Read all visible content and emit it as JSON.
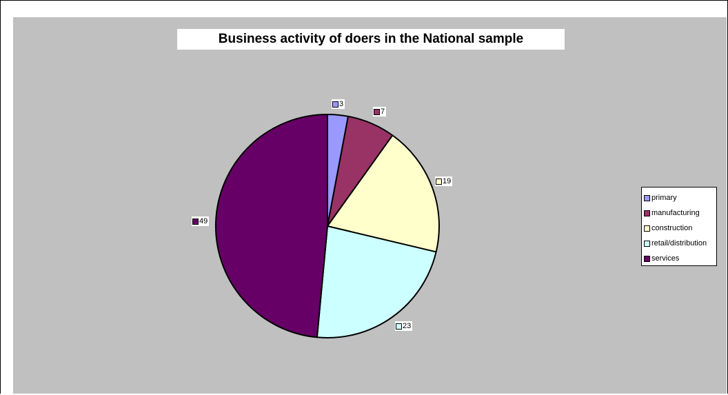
{
  "chart_data": {
    "type": "pie",
    "title": "Business activity of doers in the National sample",
    "categories": [
      "primary",
      "manufacturing",
      "construction",
      "retail/distribution",
      "services"
    ],
    "values": [
      3,
      7,
      19,
      23,
      49
    ],
    "colors": [
      "#9999ff",
      "#993366",
      "#ffffcc",
      "#ccffff",
      "#660066"
    ],
    "data_labels": [
      "3",
      "7",
      "19",
      "23",
      "49"
    ],
    "legend_placement": "right",
    "start_angle_deg": 0,
    "direction": "clockwise"
  }
}
